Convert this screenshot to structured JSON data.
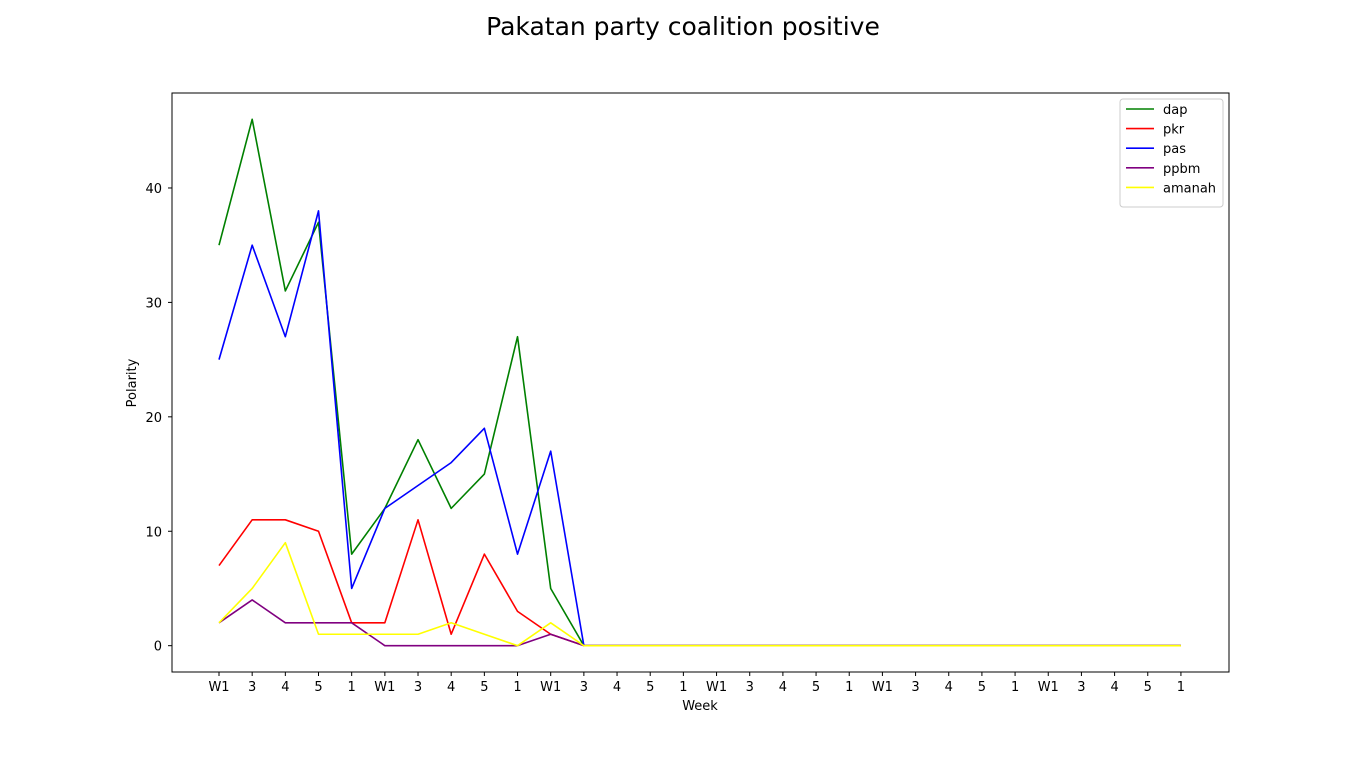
{
  "chart_data": {
    "type": "line",
    "title": "Pakatan party coalition positive",
    "xlabel": "Week",
    "ylabel": "Polarity",
    "categories": [
      "W1",
      "3",
      "4",
      "5",
      "1",
      "W1",
      "3",
      "4",
      "5",
      "1",
      "W1",
      "3",
      "4",
      "5",
      "1",
      "W1",
      "3",
      "4",
      "5",
      "1",
      "W1",
      "3",
      "4",
      "5",
      "1",
      "W1",
      "3",
      "4",
      "5",
      "1"
    ],
    "yticks": [
      0,
      10,
      20,
      30,
      40
    ],
    "ylim": [
      -2.3,
      48.3
    ],
    "grid": false,
    "legend_position": "top-right",
    "series": [
      {
        "name": "dap",
        "color": "#008000",
        "values": [
          35,
          46,
          31,
          37,
          8,
          12,
          18,
          12,
          15,
          27,
          5,
          0,
          0,
          0,
          0,
          0,
          0,
          0,
          0,
          0,
          0,
          0,
          0,
          0,
          0,
          0,
          0,
          0,
          0,
          0
        ]
      },
      {
        "name": "pkr",
        "color": "#ff0000",
        "values": [
          7,
          11,
          11,
          10,
          2,
          2,
          11,
          1,
          8,
          3,
          1,
          0,
          0,
          0,
          0,
          0,
          0,
          0,
          0,
          0,
          0,
          0,
          0,
          0,
          0,
          0,
          0,
          0,
          0,
          0
        ]
      },
      {
        "name": "pas",
        "color": "#0000ff",
        "values": [
          25,
          35,
          27,
          38,
          5,
          12,
          14,
          16,
          19,
          8,
          17,
          0,
          0,
          0,
          0,
          0,
          0,
          0,
          0,
          0,
          0,
          0,
          0,
          0,
          0,
          0,
          0,
          0,
          0,
          0
        ]
      },
      {
        "name": "ppbm",
        "color": "#800080",
        "values": [
          2,
          4,
          2,
          2,
          2,
          0,
          0,
          0,
          0,
          0,
          1,
          0,
          0,
          0,
          0,
          0,
          0,
          0,
          0,
          0,
          0,
          0,
          0,
          0,
          0,
          0,
          0,
          0,
          0,
          0
        ]
      },
      {
        "name": "amanah",
        "color": "#ffff00",
        "values": [
          2,
          5,
          9,
          1,
          1,
          1,
          1,
          2,
          1,
          0,
          2,
          0,
          0,
          0,
          0,
          0,
          0,
          0,
          0,
          0,
          0,
          0,
          0,
          0,
          0,
          0,
          0,
          0,
          0,
          0
        ]
      }
    ]
  }
}
